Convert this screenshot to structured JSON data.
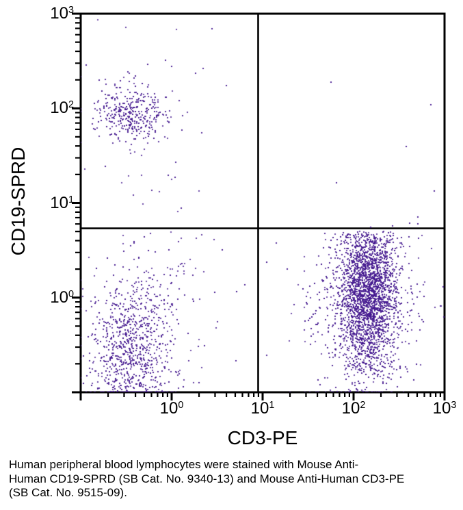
{
  "figure": {
    "caption_lines": [
      "Human peripheral blood lymphocytes were stained with Mouse Anti-",
      "Human CD19-SPRD (SB Cat. No. 9340-13) and Mouse Anti-Human CD3-PE",
      "(SB Cat. No. 9515-09)."
    ]
  },
  "chart_data": {
    "type": "scatter",
    "title": "",
    "xlabel": "CD3-PE",
    "ylabel": "CD19-SPRD",
    "x_scale": "log10",
    "y_scale": "log10",
    "xlim_log": [
      -1,
      3
    ],
    "ylim_log": [
      -1,
      3
    ],
    "x_labeled_exponents": [
      0,
      1,
      2,
      3
    ],
    "y_labeled_exponents": [
      0,
      1,
      2,
      3
    ],
    "grid": false,
    "legend": "none",
    "quadrant_gate_log": {
      "x": 0.951,
      "y": 0.732
    },
    "axis_color": "#000000",
    "background": "#ffffff",
    "dot_color": "#44188f",
    "dot_size_px": 2,
    "seed": 7,
    "populations": [
      {
        "name": "CD19-positive B cells (upper-left core)",
        "count": 340,
        "center_log": [
          -0.42,
          1.935
        ],
        "sigma_log": [
          0.195,
          0.135
        ],
        "bounds_log": {
          "x": [
            -1,
            0.93
          ],
          "y": [
            0.76,
            3
          ]
        }
      },
      {
        "name": "CD19-positive halo",
        "count": 65,
        "center_log": [
          -0.36,
          1.82
        ],
        "sigma_log": [
          0.4,
          0.42
        ],
        "bounds_log": {
          "x": [
            -1,
            0.93
          ],
          "y": [
            0.76,
            3
          ]
        }
      },
      {
        "name": "double-negative core (lower-left)",
        "count": 850,
        "center_log": [
          -0.44,
          -0.56
        ],
        "sigma_log": [
          0.22,
          0.37
        ],
        "bounds_log": {
          "x": [
            -1,
            0.93
          ],
          "y": [
            -1,
            0.72
          ]
        }
      },
      {
        "name": "double-negative upward trail",
        "count": 75,
        "center_log": [
          -0.1,
          0.12
        ],
        "sigma_log": [
          0.27,
          0.3
        ],
        "bounds_log": {
          "x": [
            -1,
            0.93
          ],
          "y": [
            -1,
            0.72
          ]
        }
      },
      {
        "name": "double-negative halo",
        "count": 55,
        "center_log": [
          -0.3,
          -0.25
        ],
        "sigma_log": [
          0.45,
          0.55
        ],
        "bounds_log": {
          "x": [
            -1,
            0.93
          ],
          "y": [
            -1,
            0.72
          ]
        }
      },
      {
        "name": "CD3-positive T cells (lower-right core)",
        "count": 2100,
        "center_log": [
          2.165,
          0.05
        ],
        "sigma_log": [
          0.155,
          0.4
        ],
        "bounds_log": {
          "x": [
            0.98,
            3
          ],
          "y": [
            -1,
            0.7
          ]
        }
      },
      {
        "name": "CD3-positive halo",
        "count": 620,
        "center_log": [
          2.08,
          -0.02
        ],
        "sigma_log": [
          0.33,
          0.56
        ],
        "bounds_log": {
          "x": [
            0.4,
            3
          ],
          "y": [
            -1,
            0.7
          ]
        }
      }
    ],
    "sparse_points_log": [
      [
        1.75,
        2.28
      ],
      [
        2.85,
        2.04
      ],
      [
        2.58,
        1.6
      ],
      [
        1.81,
        1.21
      ],
      [
        2.89,
        1.13
      ],
      [
        2.43,
        0.76
      ],
      [
        2.62,
        0.79
      ],
      [
        2.71,
        0.85
      ],
      [
        2.71,
        0.78
      ],
      [
        2.19,
        0.745
      ],
      [
        0.44,
        2.84
      ],
      [
        -0.07,
        2.51
      ],
      [
        0.0,
        2.44
      ],
      [
        0.26,
        2.37
      ],
      [
        0.6,
        2.24
      ],
      [
        -0.94,
        2.46
      ],
      [
        -0.8,
        2.3
      ],
      [
        0.71,
        -0.67
      ]
    ]
  }
}
